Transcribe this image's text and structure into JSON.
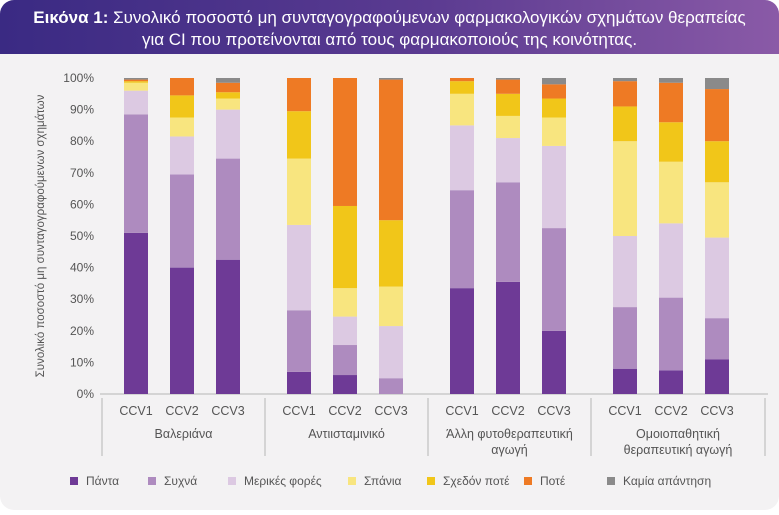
{
  "title": {
    "prefix": "Εικόνα 1:",
    "line1": " Συνολικό ποσοστό μη συνταγογραφούμενων φαρμακολογικών σχημάτων θεραπείας",
    "line2": "για CI που προτείνονται από τους φαρμακοποιούς της κοινότητας."
  },
  "colors": {
    "Πάντα": "#6e3a96",
    "Συχνά": "#ae8bbf",
    "Μερικές φορές": "#dcc9e2",
    "Σπάνια": "#f8e57f",
    "Σχεδόν ποτέ": "#f1c619",
    "Ποτέ": "#ee7a24",
    "Καμία απάντηση": "#8a8a8a"
  },
  "chart_data": {
    "type": "bar",
    "stacked": true,
    "ylabel": "Συνολικό ποσοστό μη συνταγογραφούμενων σχημάτων",
    "ylim": [
      0,
      100
    ],
    "yticks": [
      "0%",
      "10%",
      "20%",
      "30%",
      "40%",
      "50%",
      "60%",
      "70%",
      "80%",
      "90%",
      "100%"
    ],
    "legend_position": "bottom",
    "groups": [
      {
        "label": [
          "Βαλεριάνα"
        ],
        "categories": [
          "CCV1",
          "CCV2",
          "CCV3"
        ]
      },
      {
        "label": [
          "Αντιισταμινικό"
        ],
        "categories": [
          "CCV1",
          "CCV2",
          "CCV3"
        ]
      },
      {
        "label": [
          "Άλλη φυτοθεραπευτική",
          "αγωγή"
        ],
        "categories": [
          "CCV1",
          "CCV2",
          "CCV3"
        ]
      },
      {
        "label": [
          "Ομοιοπαθητική",
          "θεραπευτική αγωγή"
        ],
        "categories": [
          "CCV1",
          "CCV2",
          "CCV3"
        ]
      }
    ],
    "series": [
      {
        "name": "Πάντα",
        "values": [
          51,
          40,
          42.5,
          7,
          6,
          0,
          33.5,
          35.5,
          20,
          8,
          7.5,
          11
        ]
      },
      {
        "name": "Συχνά",
        "values": [
          37.5,
          29.5,
          32,
          19.5,
          9.5,
          5,
          31,
          31.5,
          32.5,
          19.5,
          23,
          13
        ]
      },
      {
        "name": "Μερικές φορές",
        "values": [
          7.5,
          12,
          15.5,
          27,
          9,
          16.5,
          20.5,
          14,
          26,
          22.5,
          23.5,
          25.5
        ]
      },
      {
        "name": "Σπάνια",
        "values": [
          2.5,
          6,
          3.5,
          21,
          9,
          12.5,
          10,
          7,
          9,
          30,
          19.5,
          17.5
        ]
      },
      {
        "name": "Σχεδόν ποτέ",
        "values": [
          0.5,
          7,
          2,
          15,
          26,
          21,
          4,
          7,
          6,
          11,
          12.5,
          13
        ]
      },
      {
        "name": "Ποτέ",
        "values": [
          0.5,
          5.5,
          3,
          10.5,
          40.5,
          44.5,
          1,
          4.5,
          4.5,
          8,
          12.5,
          16.5
        ]
      },
      {
        "name": "Καμία απάντηση",
        "values": [
          0.5,
          0,
          1.5,
          0,
          0,
          0.5,
          0,
          0.5,
          2,
          1,
          1.5,
          3.5
        ]
      }
    ]
  }
}
